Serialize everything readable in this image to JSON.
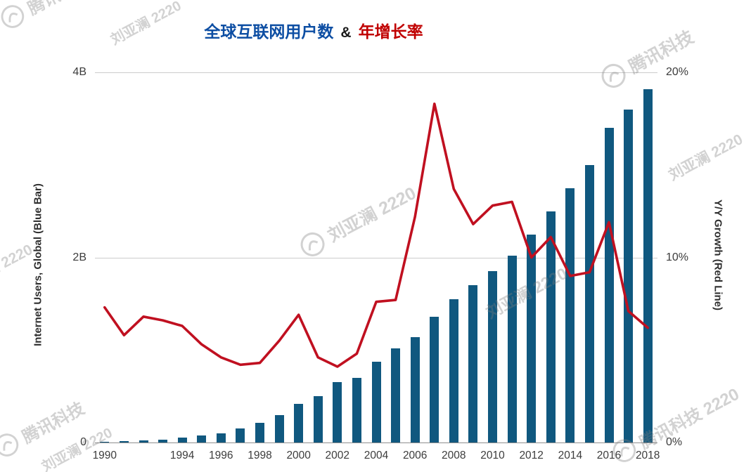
{
  "title": {
    "part_users": "全球互联网用户数",
    "part_amp": "&",
    "part_growth": "年增长率"
  },
  "axes": {
    "left_title": "Internet Users, Global (Blue Bar)",
    "right_title": "Y/Y Growth (Red Line)",
    "left_ticks": [
      {
        "label": "0",
        "value": 0
      },
      {
        "label": "2B",
        "value": 2
      },
      {
        "label": "4B",
        "value": 4
      }
    ],
    "right_ticks": [
      {
        "label": "0%",
        "value": 0
      },
      {
        "label": "10%",
        "value": 10
      },
      {
        "label": "20%",
        "value": 20
      }
    ],
    "x_tick_labels": [
      "1990",
      "1994",
      "1996",
      "1998",
      "2000",
      "2002",
      "2004",
      "2006",
      "2008",
      "2010",
      "2012",
      "2014",
      "2016",
      "2018"
    ]
  },
  "colors": {
    "bar": "#10587f",
    "line": "#c01020",
    "title_blue": "#0d4ea3",
    "title_red": "#c00000",
    "grid": "#cccccc"
  },
  "watermarks": {
    "author": "刘亚澜 2220",
    "brand": "腾讯科技",
    "brand_author": "腾讯科技 2220"
  },
  "chart_data": {
    "type": "bar",
    "subtype": "bar+line combo, dual axis",
    "title": "全球互联网用户数 & 年增长率",
    "x": [
      1990,
      1991,
      1992,
      1993,
      1994,
      1995,
      1996,
      1997,
      1998,
      1999,
      2000,
      2001,
      2002,
      2003,
      2004,
      2005,
      2006,
      2007,
      2008,
      2009,
      2010,
      2011,
      2012,
      2013,
      2014,
      2015,
      2016,
      2017,
      2018
    ],
    "series": [
      {
        "name": "Internet Users, Global (billions)",
        "type": "bar",
        "axis": "left",
        "color": "#10587f",
        "values": [
          0.01,
          0.015,
          0.02,
          0.03,
          0.05,
          0.08,
          0.1,
          0.15,
          0.21,
          0.3,
          0.42,
          0.5,
          0.65,
          0.7,
          0.87,
          1.02,
          1.14,
          1.36,
          1.55,
          1.7,
          1.85,
          2.02,
          2.25,
          2.5,
          2.75,
          3.0,
          3.4,
          3.6,
          3.82
        ]
      },
      {
        "name": "Y/Y Growth (%)",
        "type": "line",
        "axis": "right",
        "color": "#c01020",
        "values": [
          7.3,
          5.8,
          6.8,
          6.6,
          6.3,
          5.3,
          4.6,
          4.2,
          4.3,
          5.5,
          6.9,
          4.6,
          4.1,
          4.8,
          7.6,
          7.7,
          12.2,
          18.3,
          13.7,
          11.8,
          12.8,
          13.0,
          10.0,
          11.1,
          9.0,
          9.2,
          11.9,
          7.1,
          6.2
        ]
      }
    ],
    "left_axis": {
      "label": "Internet Users, Global (Blue Bar)",
      "range": [
        0,
        4
      ],
      "unit": "B"
    },
    "right_axis": {
      "label": "Y/Y Growth (Red Line)",
      "range": [
        0,
        20
      ],
      "unit": "%"
    },
    "legend": "none",
    "grid": "horizontal"
  }
}
